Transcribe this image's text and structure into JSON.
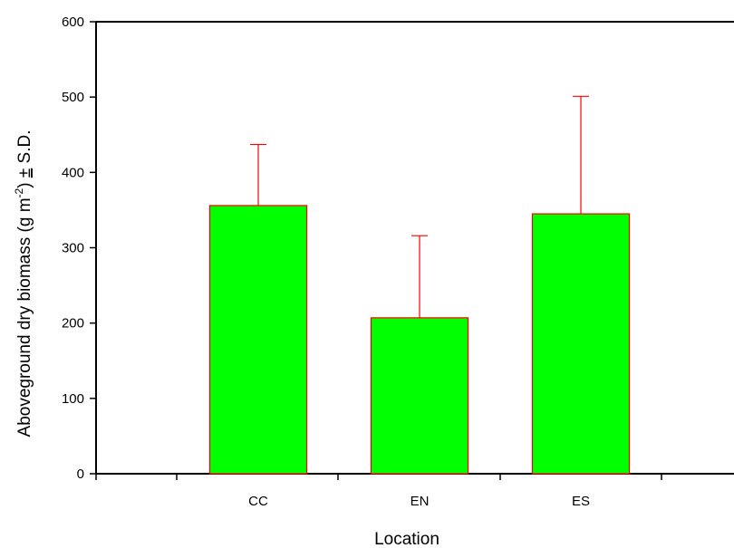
{
  "chart_data": {
    "type": "bar",
    "title": "",
    "xlabel": "Location",
    "ylabel": {
      "prefix": "Aboveground dry biomass (g m",
      "superscript": "-2",
      "suffix": ") ",
      "pm": "±",
      "sd": " S.D."
    },
    "categories": [
      "CC",
      "EN",
      "ES"
    ],
    "values": [
      356,
      207,
      345
    ],
    "error_plus": [
      81,
      109,
      156
    ],
    "ylim": [
      0,
      600
    ],
    "yticks": [
      0,
      100,
      200,
      300,
      400,
      500,
      600
    ],
    "bar_color": "#00ff00",
    "edge_color": "#ff0000",
    "error_color": "#ff0000",
    "grid": false,
    "legend": "none"
  }
}
